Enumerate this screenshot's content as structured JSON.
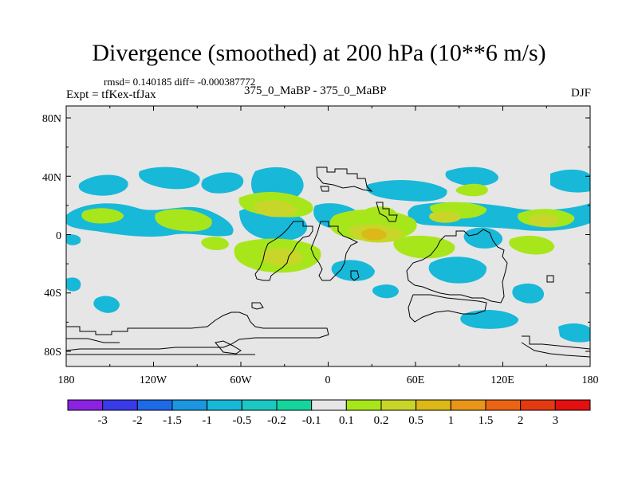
{
  "title": "Divergence (smoothed) at 200 hPa (10**6 m/s)",
  "stats": "rmsd= 0.140185 diff= -0.000387772",
  "experiment": "Expt = tfKex-tfJax",
  "center_label": "375_0_MaBP - 375_0_MaBP",
  "season": "DJF",
  "y_ticks": [
    "80N",
    "40N",
    "0",
    "40S",
    "80S"
  ],
  "x_ticks": [
    "180",
    "120W",
    "60W",
    "0",
    "60E",
    "120E",
    "180"
  ],
  "colorbar": {
    "labels": [
      "-3",
      "-2",
      "-1.5",
      "-1",
      "-0.5",
      "-0.2",
      "-0.1",
      "0.1",
      "0.2",
      "0.5",
      "1",
      "1.5",
      "2",
      "3"
    ],
    "colors": [
      "#8a22e0",
      "#3a3ae8",
      "#1e6ae6",
      "#1c96e0",
      "#18b8d8",
      "#1cc8c4",
      "#16d49e",
      "#e6e6e6",
      "#a8e61c",
      "#c8d62a",
      "#dcb818",
      "#e8961a",
      "#ea6414",
      "#e43a12",
      "#e21010"
    ]
  },
  "map_colors": {
    "background": "#e6e6e6",
    "neg_weak": "#18ccb8",
    "neg_mid": "#18b8d8",
    "pos_weak": "#a8e61c",
    "pos_mid": "#c8d62a",
    "pos_strong": "#dcb818"
  }
}
